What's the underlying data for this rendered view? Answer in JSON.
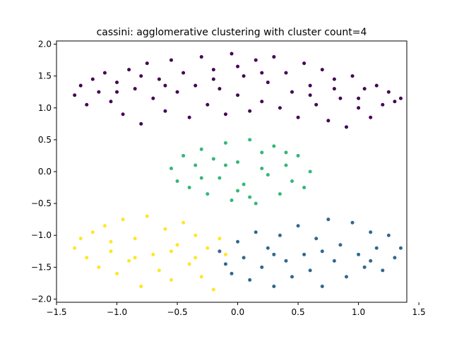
{
  "chart_data": {
    "type": "scatter",
    "title": "cassini: agglomerative clustering with cluster count=4",
    "xlabel": "",
    "ylabel": "",
    "xlim": [
      -1.5,
      1.4
    ],
    "ylim": [
      -2.05,
      2.05
    ],
    "xticks": [
      -1.5,
      -1.0,
      -0.5,
      0.0,
      0.5,
      1.0,
      1.5
    ],
    "xtick_labels": [
      "−1.5",
      "−1.0",
      "−0.5",
      "0.0",
      "0.5",
      "1.0",
      "1.5"
    ],
    "yticks": [
      -2.0,
      -1.5,
      -1.0,
      -0.5,
      0.0,
      0.5,
      1.0,
      1.5,
      2.0
    ],
    "ytick_labels": [
      "−2.0",
      "−1.5",
      "−1.0",
      "−0.5",
      "0.0",
      "0.5",
      "1.0",
      "1.5",
      "2.0"
    ],
    "grid": false,
    "legend": "none",
    "series": [
      {
        "color": "#440154",
        "points": [
          [
            -1.35,
            1.2
          ],
          [
            -1.3,
            1.35
          ],
          [
            -1.25,
            1.05
          ],
          [
            -1.2,
            1.45
          ],
          [
            -1.15,
            1.25
          ],
          [
            -1.1,
            1.55
          ],
          [
            -1.05,
            1.1
          ],
          [
            -1.0,
            1.4
          ],
          [
            -0.95,
            0.9
          ],
          [
            -0.9,
            1.6
          ],
          [
            -0.85,
            1.3
          ],
          [
            -0.8,
            0.75
          ],
          [
            -0.75,
            1.7
          ],
          [
            -0.7,
            1.15
          ],
          [
            -0.65,
            1.45
          ],
          [
            -0.6,
            0.95
          ],
          [
            -0.55,
            1.75
          ],
          [
            -0.5,
            1.25
          ],
          [
            -0.45,
            1.55
          ],
          [
            -0.4,
            0.85
          ],
          [
            -0.35,
            1.35
          ],
          [
            -0.3,
            1.8
          ],
          [
            -0.25,
            1.05
          ],
          [
            -0.2,
            1.6
          ],
          [
            -0.15,
            1.3
          ],
          [
            -0.1,
            0.9
          ],
          [
            -0.05,
            1.85
          ],
          [
            0.0,
            1.2
          ],
          [
            0.05,
            1.5
          ],
          [
            0.1,
            0.95
          ],
          [
            0.15,
            1.75
          ],
          [
            0.2,
            1.1
          ],
          [
            0.25,
            1.4
          ],
          [
            0.3,
            1.8
          ],
          [
            0.35,
            1.0
          ],
          [
            0.4,
            1.55
          ],
          [
            0.45,
            1.25
          ],
          [
            0.5,
            0.85
          ],
          [
            0.55,
            1.7
          ],
          [
            0.6,
            1.35
          ],
          [
            0.65,
            1.05
          ],
          [
            0.7,
            1.6
          ],
          [
            0.75,
            0.8
          ],
          [
            0.8,
            1.45
          ],
          [
            0.85,
            1.15
          ],
          [
            0.9,
            0.7
          ],
          [
            0.95,
            1.5
          ],
          [
            1.0,
            1.0
          ],
          [
            1.05,
            1.3
          ],
          [
            1.1,
            0.85
          ],
          [
            1.15,
            1.35
          ],
          [
            1.2,
            1.05
          ],
          [
            1.25,
            1.25
          ],
          [
            1.3,
            1.1
          ],
          [
            1.35,
            1.15
          ],
          [
            -1.0,
            1.25
          ],
          [
            -0.6,
            1.35
          ],
          [
            -0.2,
            1.45
          ],
          [
            0.2,
            1.55
          ],
          [
            0.6,
            1.2
          ],
          [
            1.0,
            1.15
          ],
          [
            -0.8,
            1.5
          ],
          [
            0.0,
            1.65
          ],
          [
            0.8,
            1.3
          ]
        ]
      },
      {
        "color": "#35b779",
        "points": [
          [
            -0.55,
            0.05
          ],
          [
            -0.5,
            -0.15
          ],
          [
            -0.45,
            0.25
          ],
          [
            -0.4,
            -0.25
          ],
          [
            -0.35,
            0.1
          ],
          [
            -0.3,
            0.35
          ],
          [
            -0.25,
            -0.35
          ],
          [
            -0.2,
            0.2
          ],
          [
            -0.15,
            -0.1
          ],
          [
            -0.1,
            0.45
          ],
          [
            -0.05,
            -0.45
          ],
          [
            0.0,
            0.15
          ],
          [
            0.05,
            -0.2
          ],
          [
            0.1,
            0.5
          ],
          [
            0.15,
            -0.5
          ],
          [
            0.2,
            0.3
          ],
          [
            0.25,
            -0.05
          ],
          [
            0.3,
            0.4
          ],
          [
            0.35,
            -0.35
          ],
          [
            0.4,
            0.1
          ],
          [
            0.45,
            -0.15
          ],
          [
            0.5,
            0.25
          ],
          [
            0.55,
            -0.25
          ],
          [
            0.6,
            0.0
          ],
          [
            -0.3,
            -0.1
          ],
          [
            0.0,
            -0.3
          ],
          [
            0.2,
            0.05
          ],
          [
            -0.1,
            0.1
          ],
          [
            0.4,
            0.3
          ],
          [
            0.1,
            -0.4
          ]
        ]
      },
      {
        "color": "#31688e",
        "points": [
          [
            -0.15,
            -1.25
          ],
          [
            -0.1,
            -1.45
          ],
          [
            -0.05,
            -1.6
          ],
          [
            0.0,
            -1.1
          ],
          [
            0.05,
            -1.35
          ],
          [
            0.1,
            -1.7
          ],
          [
            0.15,
            -0.95
          ],
          [
            0.2,
            -1.5
          ],
          [
            0.25,
            -1.2
          ],
          [
            0.3,
            -1.8
          ],
          [
            0.35,
            -1.0
          ],
          [
            0.4,
            -1.4
          ],
          [
            0.45,
            -1.65
          ],
          [
            0.5,
            -0.85
          ],
          [
            0.55,
            -1.3
          ],
          [
            0.6,
            -1.55
          ],
          [
            0.65,
            -1.05
          ],
          [
            0.7,
            -1.8
          ],
          [
            0.75,
            -0.75
          ],
          [
            0.8,
            -1.4
          ],
          [
            0.85,
            -1.15
          ],
          [
            0.9,
            -1.65
          ],
          [
            0.95,
            -0.8
          ],
          [
            1.0,
            -1.3
          ],
          [
            1.05,
            -1.5
          ],
          [
            1.1,
            -0.95
          ],
          [
            1.15,
            -1.2
          ],
          [
            1.2,
            -1.55
          ],
          [
            1.25,
            -1.0
          ],
          [
            1.3,
            -1.35
          ],
          [
            1.35,
            -1.2
          ],
          [
            0.3,
            -1.3
          ],
          [
            0.7,
            -1.25
          ],
          [
            1.1,
            -1.4
          ]
        ]
      },
      {
        "color": "#fde725",
        "points": [
          [
            -1.35,
            -1.2
          ],
          [
            -1.3,
            -1.05
          ],
          [
            -1.25,
            -1.35
          ],
          [
            -1.2,
            -0.95
          ],
          [
            -1.15,
            -1.5
          ],
          [
            -1.1,
            -0.85
          ],
          [
            -1.05,
            -1.25
          ],
          [
            -1.0,
            -1.6
          ],
          [
            -0.95,
            -0.75
          ],
          [
            -0.9,
            -1.4
          ],
          [
            -0.85,
            -1.05
          ],
          [
            -0.8,
            -1.8
          ],
          [
            -0.75,
            -0.7
          ],
          [
            -0.7,
            -1.3
          ],
          [
            -0.65,
            -1.55
          ],
          [
            -0.6,
            -0.9
          ],
          [
            -0.55,
            -1.7
          ],
          [
            -0.5,
            -1.15
          ],
          [
            -0.45,
            -0.8
          ],
          [
            -0.4,
            -1.45
          ],
          [
            -0.35,
            -1.0
          ],
          [
            -0.3,
            -1.65
          ],
          [
            -0.25,
            -1.2
          ],
          [
            -0.2,
            -1.85
          ],
          [
            -0.15,
            -1.05
          ],
          [
            -0.1,
            -1.3
          ],
          [
            -0.85,
            -1.35
          ],
          [
            -0.55,
            -1.25
          ],
          [
            -1.05,
            -1.1
          ],
          [
            -0.35,
            -1.35
          ]
        ]
      }
    ]
  }
}
